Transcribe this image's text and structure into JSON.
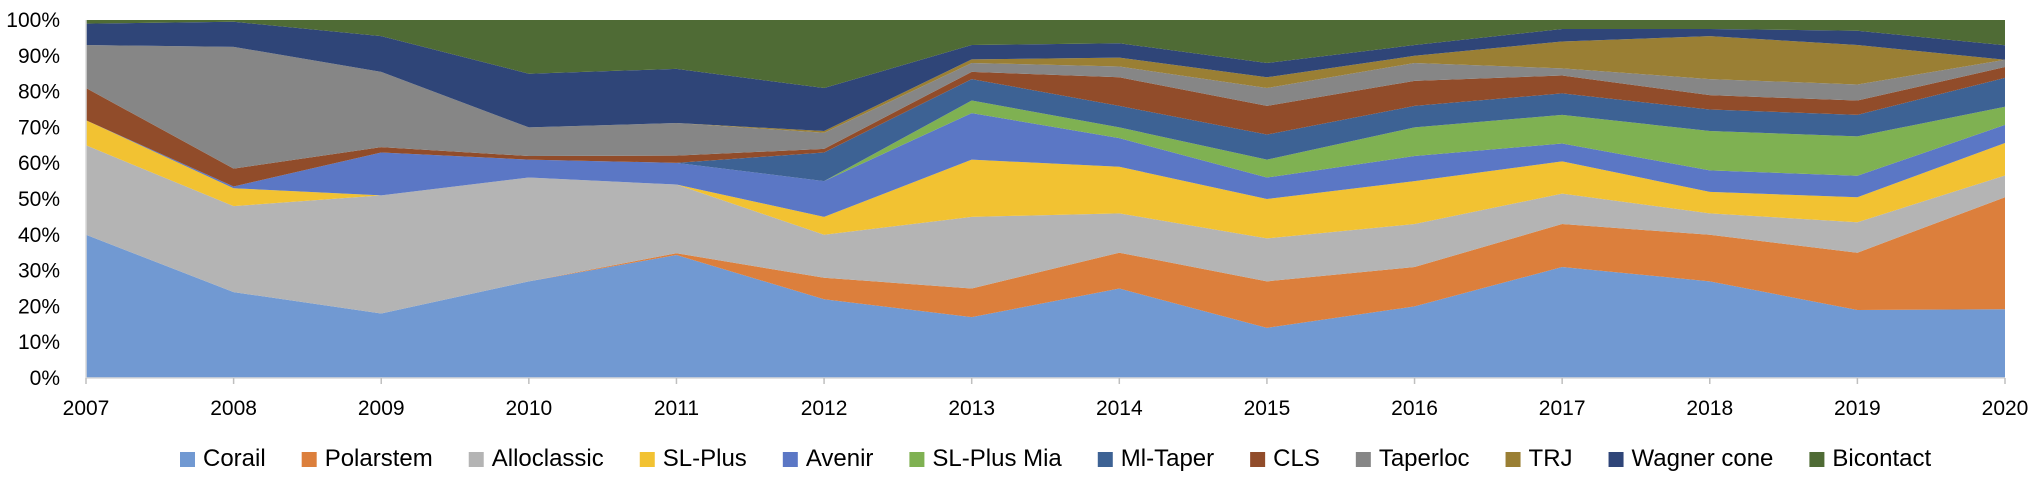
{
  "chart_data": {
    "type": "area",
    "stacked": true,
    "percent": true,
    "title": "",
    "xlabel": "",
    "ylabel": "",
    "ylim": [
      0,
      100
    ],
    "y_ticks": [
      "0%",
      "10%",
      "20%",
      "30%",
      "40%",
      "50%",
      "60%",
      "70%",
      "80%",
      "90%",
      "100%"
    ],
    "x": [
      "2007",
      "2008",
      "2009",
      "2010",
      "2011",
      "2012",
      "2013",
      "2014",
      "2015",
      "2016",
      "2017",
      "2018",
      "2019",
      "2020"
    ],
    "legend_position": "bottom",
    "series": [
      {
        "name": "Corail",
        "color": "#7199d2",
        "values": [
          40,
          24,
          18,
          27,
          34,
          22,
          17,
          25,
          14,
          20,
          31,
          27,
          19,
          19
        ]
      },
      {
        "name": "Polarstem",
        "color": "#dc7f3c",
        "values": [
          0,
          0,
          0,
          0,
          0.5,
          6,
          8,
          10,
          13,
          11,
          12,
          13,
          16,
          31
        ]
      },
      {
        "name": "Alloclassic",
        "color": "#b4b4b4",
        "values": [
          25,
          24,
          33,
          29,
          19,
          12,
          20,
          11,
          12,
          12,
          8.5,
          6,
          8.5,
          6
        ]
      },
      {
        "name": "SL-Plus",
        "color": "#f2c232",
        "values": [
          7,
          5,
          0,
          0,
          0,
          5,
          16,
          13,
          11,
          12,
          9,
          6,
          7,
          9
        ]
      },
      {
        "name": "Avenir",
        "color": "#5b77c5",
        "values": [
          0,
          0.5,
          12,
          5,
          6,
          10,
          13,
          8,
          6,
          7,
          5,
          6,
          6,
          5
        ]
      },
      {
        "name": "SL-Plus Mia",
        "color": "#7fb152",
        "values": [
          0,
          0,
          0,
          0,
          0,
          0,
          3.5,
          3,
          5,
          8,
          8,
          11,
          11,
          5
        ]
      },
      {
        "name": "Ml-Taper",
        "color": "#3d6294",
        "values": [
          0,
          0,
          0,
          0,
          0,
          8,
          6,
          6,
          7,
          6,
          6,
          6,
          6,
          8
        ]
      },
      {
        "name": "CLS",
        "color": "#914c2a",
        "values": [
          9,
          5,
          1.5,
          1,
          2,
          1,
          2,
          8,
          8,
          7,
          5,
          4,
          4,
          3
        ]
      },
      {
        "name": "Taperloc",
        "color": "#868686",
        "values": [
          12,
          34,
          21,
          8,
          9,
          4.5,
          2.5,
          3,
          5,
          5,
          2,
          4.5,
          4.5,
          2
        ]
      },
      {
        "name": "TRJ",
        "color": "#9a7f34",
        "values": [
          0,
          0,
          0,
          0,
          0,
          0.5,
          1,
          2.5,
          3,
          2,
          7.5,
          12,
          11,
          0
        ]
      },
      {
        "name": "Wagner cone",
        "color": "#2f4578",
        "values": [
          6,
          7,
          10,
          15,
          15,
          12,
          4,
          4,
          4,
          3,
          3.5,
          2,
          4,
          4
        ]
      },
      {
        "name": "Bicontact",
        "color": "#4f6b35",
        "values": [
          1,
          0.5,
          4.5,
          15,
          13.5,
          19,
          7,
          6.5,
          12,
          7,
          2.5,
          2.5,
          3,
          7
        ]
      }
    ]
  }
}
